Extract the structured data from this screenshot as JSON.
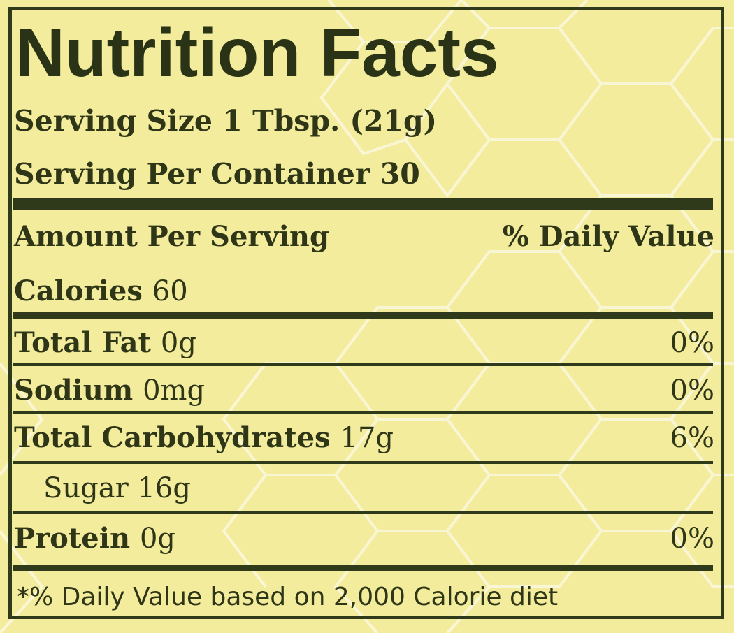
{
  "panel": {
    "title": "Nutrition Facts",
    "serving_size": "Serving Size 1 Tbsp. (21g)",
    "servings_per_container": "Serving Per Container 30"
  },
  "header": {
    "amount_per_serving": "Amount Per Serving",
    "daily_value": "% Daily Value"
  },
  "calories": {
    "label": "Calories",
    "value": "60"
  },
  "nutrients": [
    {
      "label": "Total Fat",
      "amount": "0g",
      "dv": "0%"
    },
    {
      "label": "Sodium",
      "amount": "0mg",
      "dv": "0%"
    },
    {
      "label": "Total Carbohydrates",
      "amount": "17g",
      "dv": "6%"
    },
    {
      "label": "Sugar",
      "amount": "16g",
      "dv": ""
    },
    {
      "label": "Protein",
      "amount": "0g",
      "dv": "0%"
    }
  ],
  "footnote": "*% Daily Value based on 2,000 Calorie diet",
  "colors": {
    "background": "#f3ec9c",
    "ink": "#2f3a1a",
    "honeycomb_line": "#fbf8e0"
  }
}
